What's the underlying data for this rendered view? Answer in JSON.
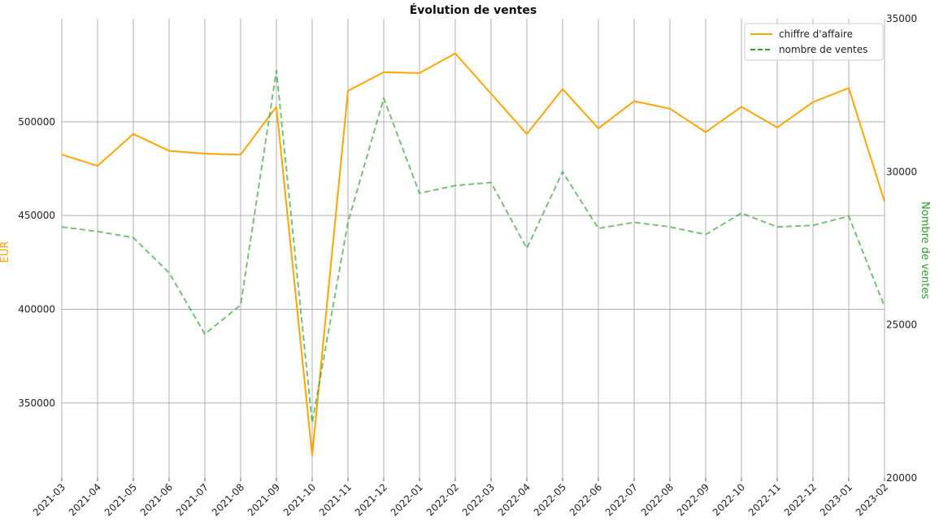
{
  "chart_data": {
    "type": "line",
    "title": "Évolution de ventes",
    "categories": [
      "2021-03",
      "2021-04",
      "2021-05",
      "2021-06",
      "2021-07",
      "2021-08",
      "2021-09",
      "2021-10",
      "2021-11",
      "2021-12",
      "2022-01",
      "2022-02",
      "2022-03",
      "2022-04",
      "2022-05",
      "2022-06",
      "2022-07",
      "2022-08",
      "2022-09",
      "2022-10",
      "2022-11",
      "2022-12",
      "2023-01",
      "2023-02"
    ],
    "ylabel_left": "EUR",
    "ylabel_right": "Nombre de ventes",
    "ylim_left": [
      310000,
      555000
    ],
    "ylim_right": [
      20000,
      35000
    ],
    "yticks_left": [
      "350000",
      "400000",
      "450000",
      "500000"
    ],
    "yticks_right": [
      "20000",
      "25000",
      "30000",
      "35000"
    ],
    "grid": true,
    "legend_position": "top-right",
    "series": [
      {
        "name": "chiffre d'affaire",
        "axis": "left",
        "color": "#FFA500",
        "style": "solid",
        "values": [
          482500,
          476500,
          493500,
          484500,
          483000,
          482500,
          508000,
          322000,
          516500,
          526500,
          526000,
          536500,
          515000,
          493500,
          517500,
          496500,
          511000,
          507000,
          494500,
          508000,
          497000,
          510500,
          518000,
          457500
        ]
      },
      {
        "name": "nombre de ventes",
        "axis": "right",
        "color": "#2ca02c",
        "style": "dashed",
        "values": [
          28200,
          28050,
          27850,
          26700,
          24700,
          25650,
          33300,
          21800,
          28350,
          32400,
          29300,
          29550,
          29650,
          27500,
          30000,
          28150,
          28350,
          28200,
          27950,
          28650,
          28200,
          28250,
          28550,
          25600
        ]
      }
    ]
  }
}
